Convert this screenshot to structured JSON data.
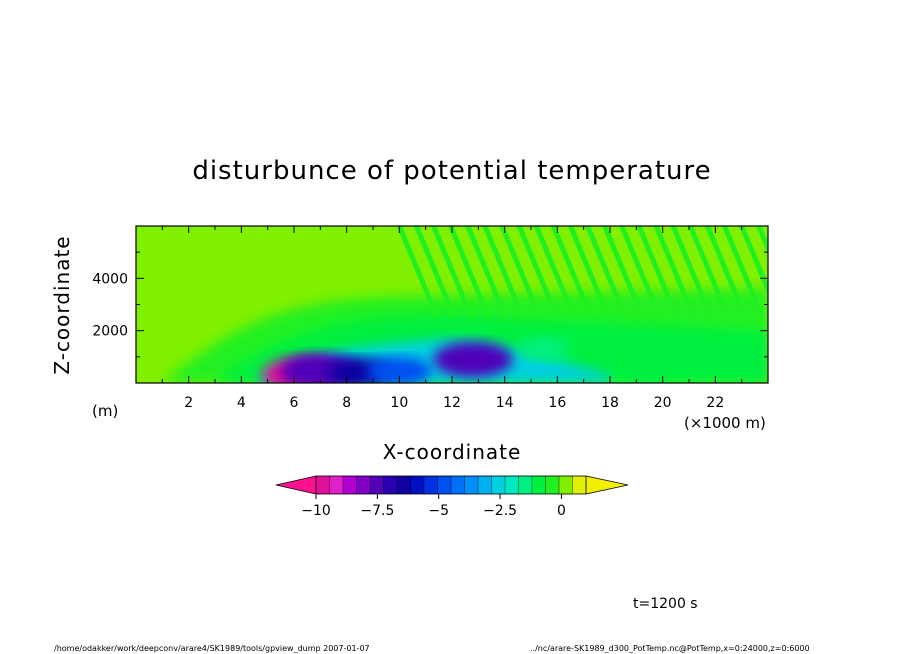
{
  "chart_data": {
    "type": "heatmap",
    "title": "disturbunce of potential temperature",
    "xlabel": "X-coordinate",
    "ylabel": "Z-coordinate",
    "x_unit": "(×1000 m)",
    "y_unit": "(m)",
    "xlim": [
      0,
      24
    ],
    "ylim": [
      0,
      6000
    ],
    "x_ticks": [
      "2",
      "4",
      "6",
      "8",
      "10",
      "12",
      "14",
      "16",
      "18",
      "20",
      "22"
    ],
    "y_ticks": [
      "2000",
      "4000"
    ],
    "colorbar": {
      "range": [
        -10,
        1
      ],
      "tick_labels": [
        "−10",
        "−7.5",
        "−5",
        "−2.5",
        "0"
      ],
      "tick_values": [
        -10,
        -7.5,
        -5,
        -2.5,
        0
      ],
      "colors": [
        "#e0109a",
        "#e020c8",
        "#b000d0",
        "#8000c8",
        "#5000b8",
        "#2800b0",
        "#1000a0",
        "#0010c0",
        "#0030e0",
        "#0050f0",
        "#0070f8",
        "#0090f8",
        "#00b0f0",
        "#00d0e0",
        "#00e8c0",
        "#00f080",
        "#00f040",
        "#20f020",
        "#80f000",
        "#e0f000"
      ],
      "low_color": "#ff1090",
      "high_color": "#f0f000"
    },
    "features": [
      {
        "x": 6.3,
        "z": 300,
        "value": -10
      },
      {
        "x": 7.0,
        "z": 450,
        "value": -7.5
      },
      {
        "x": 8.5,
        "z": 400,
        "value": -6.5
      },
      {
        "x": 10.0,
        "z": 450,
        "value": -5
      },
      {
        "x": 12.8,
        "z": 900,
        "value": -7.5
      },
      {
        "x": 15.5,
        "z": 1300,
        "value": -1.5
      },
      {
        "x": 19.5,
        "z": 200,
        "value": -1
      }
    ]
  },
  "time_label": "t=1200 s",
  "footer_left": "/home/odakker/work/deepconv/arare4/SK1989/tools/gpview_dump  2007-01-07",
  "footer_right": "../nc/arare-SK1989_d300_PotTemp.nc@PotTemp,x=0:24000,z=0:6000"
}
